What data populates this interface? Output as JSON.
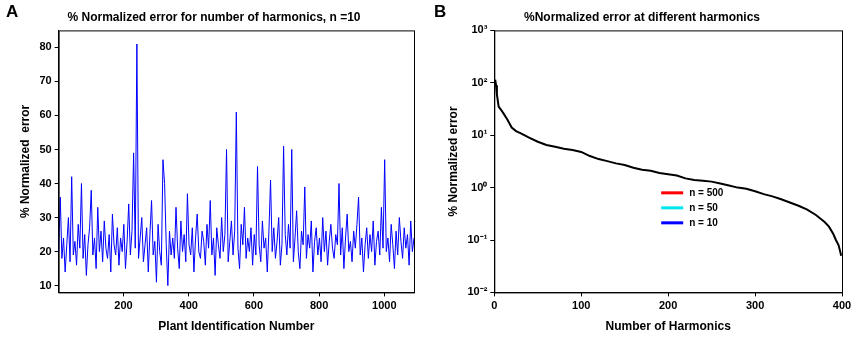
{
  "chart_data": [
    {
      "type": "line",
      "panel": "A",
      "title": "% Normalized error for number of harmonics, n =10",
      "x_label": "Plant Identification Number",
      "y_label": "% Normalized  error",
      "color": "#0000ff",
      "xlim": [
        1,
        1091
      ],
      "xticks": [
        200,
        400,
        600,
        800,
        1000
      ],
      "ylim": [
        8,
        85
      ],
      "yticks": [
        10,
        20,
        30,
        40,
        50,
        60,
        70,
        80
      ],
      "grid": false,
      "x": [
        1,
        6,
        11,
        16,
        21,
        26,
        31,
        36,
        41,
        46,
        51,
        56,
        61,
        66,
        71,
        76,
        81,
        86,
        91,
        96,
        101,
        106,
        111,
        116,
        121,
        126,
        131,
        136,
        141,
        146,
        151,
        156,
        161,
        166,
        171,
        176,
        181,
        186,
        191,
        196,
        201,
        206,
        211,
        216,
        221,
        226,
        231,
        236,
        241,
        246,
        251,
        256,
        261,
        266,
        271,
        276,
        281,
        286,
        291,
        296,
        301,
        306,
        311,
        316,
        321,
        326,
        331,
        336,
        341,
        346,
        351,
        356,
        361,
        366,
        371,
        376,
        381,
        386,
        391,
        396,
        401,
        406,
        411,
        416,
        421,
        426,
        431,
        436,
        441,
        446,
        451,
        456,
        461,
        466,
        471,
        476,
        481,
        486,
        491,
        496,
        501,
        506,
        511,
        516,
        521,
        526,
        531,
        536,
        541,
        546,
        551,
        556,
        561,
        566,
        571,
        576,
        581,
        586,
        591,
        596,
        601,
        606,
        611,
        616,
        621,
        626,
        631,
        636,
        641,
        646,
        651,
        656,
        661,
        666,
        671,
        676,
        681,
        686,
        691,
        696,
        701,
        706,
        711,
        716,
        721,
        726,
        731,
        736,
        741,
        746,
        751,
        756,
        761,
        766,
        771,
        776,
        781,
        786,
        791,
        796,
        801,
        806,
        811,
        816,
        821,
        826,
        831,
        836,
        841,
        846,
        851,
        856,
        861,
        866,
        871,
        876,
        881,
        886,
        891,
        896,
        901,
        906,
        911,
        916,
        921,
        926,
        931,
        936,
        941,
        946,
        951,
        956,
        961,
        966,
        971,
        976,
        981,
        986,
        991,
        996,
        1001,
        1006,
        1011,
        1016,
        1021,
        1026,
        1031,
        1036,
        1041,
        1046,
        1051,
        1056,
        1061,
        1066,
        1071,
        1076,
        1081,
        1086,
        1091
      ],
      "values": [
        20,
        36,
        18,
        24,
        14,
        22,
        30,
        17,
        42,
        19,
        23,
        16,
        28,
        21,
        40,
        18,
        25,
        13,
        22,
        27,
        38,
        19,
        24,
        15,
        33,
        20,
        26,
        17,
        29,
        21,
        18,
        25,
        14,
        31,
        22,
        19,
        27,
        16,
        24,
        20,
        28,
        15,
        23,
        34,
        19,
        26,
        49,
        21,
        81,
        18,
        24,
        30,
        17,
        22,
        27,
        14,
        25,
        35,
        19,
        23,
        11,
        28,
        20,
        16,
        47,
        40,
        22,
        10,
        26,
        19,
        24,
        18,
        33,
        21,
        15,
        29,
        20,
        25,
        17,
        37,
        22,
        19,
        27,
        14,
        24,
        31,
        20,
        18,
        26,
        23,
        16,
        28,
        21,
        35,
        19,
        24,
        13,
        27,
        22,
        18,
        30,
        20,
        25,
        50,
        17,
        23,
        29,
        19,
        26,
        61,
        21,
        15,
        28,
        22,
        33,
        18,
        24,
        20,
        27,
        16,
        25,
        19,
        45,
        22,
        17,
        29,
        21,
        24,
        14,
        26,
        41,
        20,
        27,
        18,
        23,
        30,
        16,
        22,
        51,
        25,
        19,
        28,
        21,
        50,
        17,
        24,
        32,
        20,
        15,
        26,
        22,
        39,
        18,
        25,
        21,
        29,
        14,
        23,
        27,
        19,
        24,
        17,
        30,
        20,
        26,
        16,
        23,
        28,
        21,
        18,
        25,
        22,
        40,
        19,
        27,
        15,
        24,
        31,
        20,
        23,
        17,
        26,
        21,
        28,
        36,
        19,
        24,
        14,
        22,
        27,
        18,
        25,
        20,
        29,
        16,
        23,
        26,
        19,
        33,
        21,
        47,
        20,
        24,
        17,
        28,
        22,
        15,
        26,
        19,
        30,
        23,
        18,
        27,
        21,
        25,
        16,
        29,
        20,
        24
      ]
    },
    {
      "type": "line",
      "panel": "B",
      "title": "%Normalized error at different harmonics",
      "x_label": "Number of Harmonics",
      "y_label": "% Normalized error",
      "color": "#000000",
      "log": "y",
      "xlim": [
        0,
        400
      ],
      "xticks": [
        0,
        100,
        200,
        300,
        400
      ],
      "ylim": [
        0.01,
        1000
      ],
      "yticks": [
        {
          "value": 0.01,
          "label": "10⁻²"
        },
        {
          "value": 0.1,
          "label": "10⁻¹"
        },
        {
          "value": 1,
          "label": "10⁰"
        },
        {
          "value": 10,
          "label": "10¹"
        },
        {
          "value": 100,
          "label": "10²"
        },
        {
          "value": 1000,
          "label": "10³"
        }
      ],
      "grid": false,
      "x": [
        1,
        2,
        3,
        5,
        8,
        10,
        15,
        20,
        25,
        30,
        40,
        50,
        60,
        70,
        80,
        90,
        100,
        110,
        120,
        130,
        140,
        150,
        160,
        170,
        180,
        190,
        200,
        210,
        220,
        230,
        240,
        250,
        260,
        270,
        280,
        290,
        300,
        310,
        320,
        330,
        340,
        350,
        360,
        370,
        380,
        385,
        390,
        393,
        396,
        398,
        399
      ],
      "values": [
        115,
        90,
        60,
        35,
        30,
        27,
        20,
        14,
        12,
        11,
        9,
        7.5,
        6.5,
        6,
        5.5,
        5.2,
        4.8,
        4,
        3.5,
        3.2,
        2.9,
        2.7,
        2.4,
        2.2,
        2.1,
        1.9,
        1.8,
        1.7,
        1.5,
        1.4,
        1.35,
        1.3,
        1.2,
        1.1,
        1.0,
        0.95,
        0.85,
        0.75,
        0.68,
        0.6,
        0.52,
        0.45,
        0.38,
        0.3,
        0.22,
        0.18,
        0.13,
        0.1,
        0.08,
        0.06,
        0.05
      ],
      "annotations": [
        {
          "text": "n = 500",
          "color": "#ff0000"
        },
        {
          "text": "n = 50",
          "color": "#00e5ee"
        },
        {
          "text": "n = 10",
          "color": "#0000ff"
        }
      ]
    }
  ]
}
